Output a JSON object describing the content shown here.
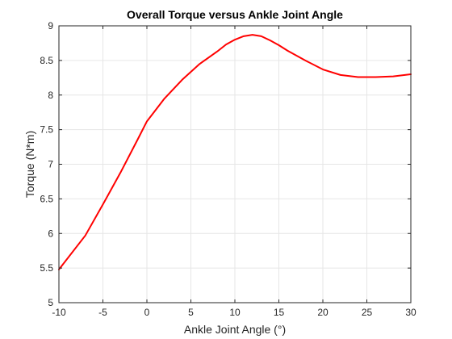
{
  "chart_data": {
    "type": "line",
    "title": "Overall Torque versus Ankle Joint Angle",
    "xlabel": "Ankle Joint Angle (°)",
    "ylabel": "Torque (N*m)",
    "xlim": [
      -10,
      30
    ],
    "ylim": [
      5,
      9
    ],
    "xticks": [
      -10,
      -5,
      0,
      5,
      10,
      15,
      20,
      25,
      30
    ],
    "yticks": [
      5,
      5.5,
      6,
      6.5,
      7,
      7.5,
      8,
      8.5,
      9
    ],
    "grid": true,
    "series": [
      {
        "color": "#ff0000",
        "x": [
          -10,
          -7,
          -5,
          -3,
          -1,
          0,
          2,
          4,
          6,
          8,
          9,
          10,
          11,
          12,
          13,
          14,
          15,
          16,
          18,
          20,
          22,
          24,
          26,
          28,
          30
        ],
        "y": [
          5.48,
          5.97,
          6.42,
          6.88,
          7.37,
          7.62,
          7.95,
          8.22,
          8.45,
          8.63,
          8.73,
          8.8,
          8.85,
          8.87,
          8.85,
          8.79,
          8.72,
          8.64,
          8.5,
          8.37,
          8.29,
          8.26,
          8.26,
          8.27,
          8.3
        ]
      }
    ]
  }
}
